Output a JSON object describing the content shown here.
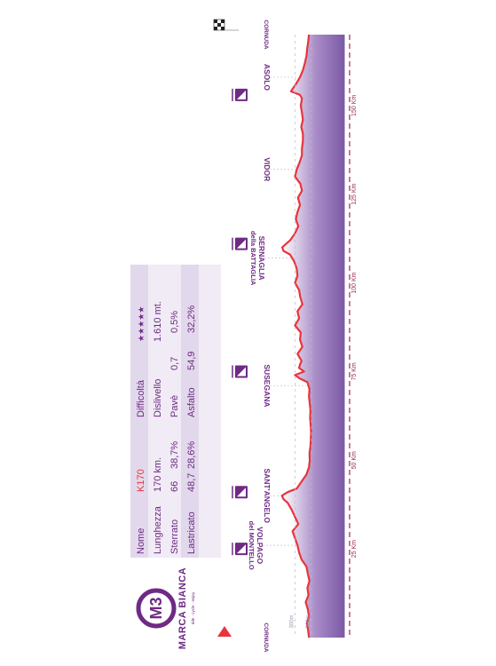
{
  "brand": {
    "logo_text": "M3",
    "name": "MARCA BIANCA",
    "tagline": "ride · cycle · enjoy",
    "colors": {
      "purple": "#6e2a84",
      "red": "#e8343c",
      "fill_dark": "#7b5aa6",
      "fill_light": "#ffffff"
    }
  },
  "info_table": {
    "rows": [
      [
        "Nome",
        "K170",
        "Difficoltà",
        "★★★★★"
      ],
      [
        "Lunghezza",
        "170 km.",
        "Dislivello",
        "1.610 mt."
      ],
      [
        "Sterrato",
        "66",
        "38,7%",
        "Pavè",
        "0,7",
        "0,5%"
      ],
      [
        "Lastricato",
        "48,7",
        "28,6%",
        "Asfalto",
        "54,9",
        "32,2%"
      ]
    ]
  },
  "icons": {
    "start": "start-arrow-icon",
    "finish": "checkered-flag-icon",
    "climb": "climb-icon"
  },
  "chart_data": {
    "type": "area",
    "orientation": "rotated-90",
    "title": "",
    "xlabel": "",
    "ylabel": "",
    "xlim": [
      0,
      170
    ],
    "ylim": [
      0,
      450
    ],
    "gridlines_y": [
      {
        "value": 200,
        "label": "200m"
      },
      {
        "value": 300,
        "label": "300m"
      }
    ],
    "x_ticks": [
      {
        "value": 25,
        "label": "25 Km"
      },
      {
        "value": 50,
        "label": "50 Km"
      },
      {
        "value": 75,
        "label": "75 Km"
      },
      {
        "value": 100,
        "label": "100 Km"
      },
      {
        "value": 125,
        "label": "125 Km"
      },
      {
        "value": 150,
        "label": "150 Km"
      }
    ],
    "places": [
      {
        "km": 0,
        "name": "CORNUDA",
        "sub": ""
      },
      {
        "km": 26,
        "name": "VOLPAGO",
        "sub": "del MONTELLO"
      },
      {
        "km": 40,
        "name": "SANT'ANGELO",
        "sub": ""
      },
      {
        "km": 71,
        "name": "SUSEGANA",
        "sub": ""
      },
      {
        "km": 107,
        "name": "SERNAGLIA",
        "sub": "della BATTAGLIA"
      },
      {
        "km": 132,
        "name": "VIDOR",
        "sub": ""
      },
      {
        "km": 158,
        "name": "ASOLO",
        "sub": ""
      },
      {
        "km": 170,
        "name": "CORNUDA",
        "sub": ""
      }
    ],
    "climbs_km": [
      25,
      41,
      75,
      111,
      153
    ],
    "x": [
      0,
      2,
      4,
      6,
      8,
      10,
      12,
      14,
      16,
      18,
      20,
      22,
      24,
      26,
      28,
      30,
      32,
      34,
      36,
      38,
      39,
      40,
      41,
      42,
      44,
      46,
      48,
      50,
      52,
      54,
      56,
      58,
      60,
      62,
      64,
      66,
      68,
      70,
      72,
      73,
      74,
      75,
      76,
      77,
      78,
      80,
      82,
      84,
      86,
      88,
      90,
      92,
      94,
      96,
      98,
      100,
      102,
      104,
      106,
      108,
      109,
      110,
      111,
      112,
      114,
      116,
      118,
      120,
      122,
      124,
      126,
      128,
      130,
      132,
      134,
      136,
      138,
      140,
      142,
      144,
      146,
      148,
      150,
      152,
      153,
      154,
      156,
      158,
      160,
      162,
      164,
      166,
      168,
      170
    ],
    "y": [
      215,
      220,
      228,
      215,
      222,
      235,
      218,
      225,
      212,
      222,
      230,
      260,
      275,
      285,
      300,
      315,
      280,
      300,
      320,
      345,
      370,
      380,
      345,
      290,
      260,
      230,
      215,
      210,
      212,
      206,
      204,
      202,
      205,
      208,
      206,
      210,
      215,
      212,
      225,
      270,
      300,
      245,
      275,
      270,
      260,
      285,
      255,
      270,
      265,
      300,
      275,
      285,
      255,
      268,
      275,
      300,
      285,
      290,
      305,
      330,
      370,
      378,
      355,
      330,
      300,
      280,
      295,
      285,
      270,
      282,
      258,
      268,
      300,
      290,
      272,
      258,
      258,
      252,
      252,
      262,
      252,
      258,
      265,
      258,
      270,
      325,
      295,
      270,
      252,
      240,
      230,
      226,
      220,
      215
    ]
  }
}
